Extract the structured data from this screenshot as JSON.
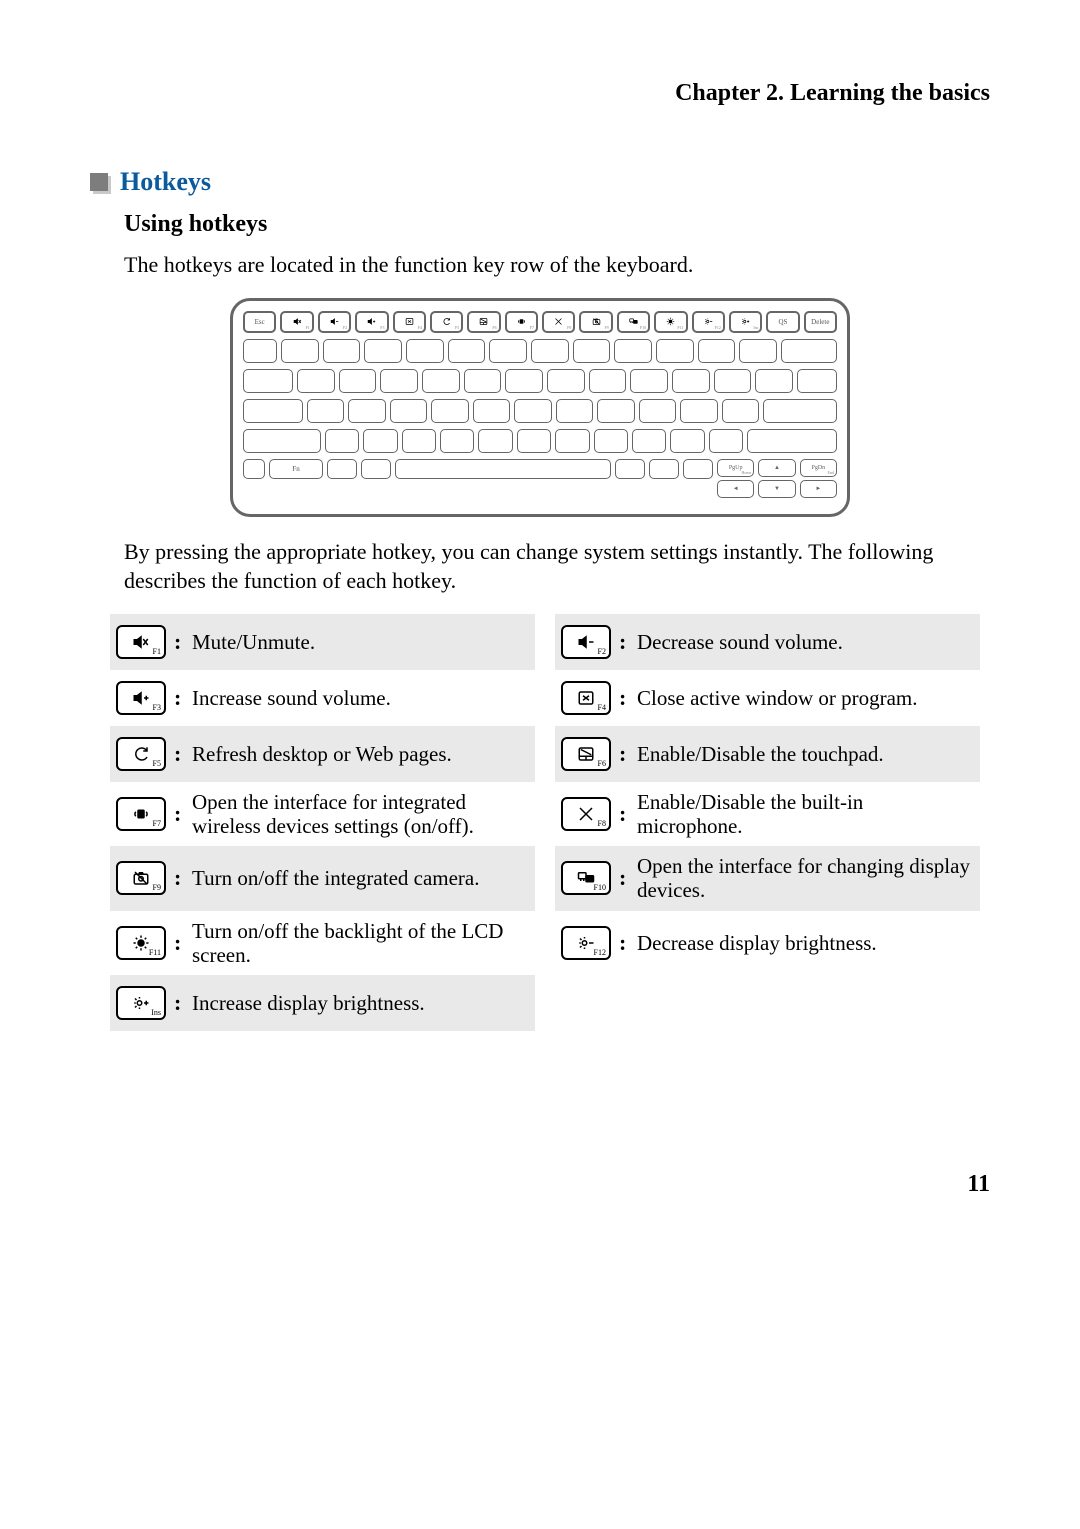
{
  "chapter_header": "Chapter 2. Learning the basics",
  "section": {
    "title": "Hotkeys",
    "marker_color": "#7d7d7d",
    "marker_shadow": "#c9c9c9",
    "title_color": "#0a5a9e"
  },
  "subsection_title": "Using hotkeys",
  "intro_text": "The hotkeys are located in the function key row of the keyboard.",
  "post_diagram_text": "By pressing the appropriate hotkey, you can change system settings instantly. The following describes the function of each hotkey.",
  "keyboard": {
    "top_row": [
      {
        "label": "Esc",
        "sub": ""
      },
      {
        "icon": "mute",
        "sub": "F1"
      },
      {
        "icon": "vol-dn",
        "sub": "F2"
      },
      {
        "icon": "vol-up",
        "sub": "F3"
      },
      {
        "icon": "close",
        "sub": "F4"
      },
      {
        "icon": "refresh",
        "sub": "F5"
      },
      {
        "icon": "touchpad",
        "sub": "F6"
      },
      {
        "icon": "wireless",
        "sub": "F7"
      },
      {
        "icon": "mic",
        "sub": "F8"
      },
      {
        "icon": "camera",
        "sub": "F9"
      },
      {
        "icon": "display",
        "sub": "F10"
      },
      {
        "icon": "backlight",
        "sub": "F11"
      },
      {
        "icon": "bright-dn",
        "sub": "F12"
      },
      {
        "icon": "bright-up",
        "sub": "Ins"
      },
      {
        "label": "QS",
        "sub": ""
      },
      {
        "label": "Delete",
        "sub": ""
      }
    ],
    "row_counts": [
      14,
      14,
      13,
      13
    ],
    "bottom_left_fn": "Fn",
    "arrows": {
      "pgup": "PgUp",
      "pgup_sub": "Home",
      "pgdn": "PgDn",
      "pgdn_sub": "End",
      "up": "▲",
      "left": "◄",
      "down": "▼",
      "right": "►"
    }
  },
  "hotkeys": {
    "f1": {
      "sub": "F1",
      "desc": "Mute/Unmute.",
      "shaded": true
    },
    "f2": {
      "sub": "F2",
      "desc": "Decrease sound volume.",
      "shaded": true
    },
    "f3": {
      "sub": "F3",
      "desc": "Increase sound volume.",
      "shaded": false
    },
    "f4": {
      "sub": "F4",
      "desc": "Close active window or program.",
      "shaded": false
    },
    "f5": {
      "sub": "F5",
      "desc": "Refresh desktop or Web pages.",
      "shaded": true
    },
    "f6": {
      "sub": "F6",
      "desc": "Enable/Disable the touchpad.",
      "shaded": true
    },
    "f7": {
      "sub": "F7",
      "desc": "Open the interface for integrated wireless devices settings (on/off).",
      "shaded": false
    },
    "f8": {
      "sub": "F8",
      "desc": "Enable/Disable the built-in microphone.",
      "shaded": false
    },
    "f9": {
      "sub": "F9",
      "desc": "Turn on/off the integrated camera.",
      "shaded": true
    },
    "f10": {
      "sub": "F10",
      "desc": "Open the interface for changing display devices.",
      "shaded": true
    },
    "f11": {
      "sub": "F11",
      "desc": "Turn on/off the backlight of the LCD screen.",
      "shaded": false
    },
    "f12": {
      "sub": "F12",
      "desc": "Decrease display brightness.",
      "shaded": false
    },
    "ins": {
      "sub": "Ins",
      "desc": "Increase display brightness.",
      "shaded": true
    }
  },
  "page_number": "11",
  "colors": {
    "text": "#000000",
    "shaded_row": "#e9e9e9",
    "background": "#ffffff"
  }
}
